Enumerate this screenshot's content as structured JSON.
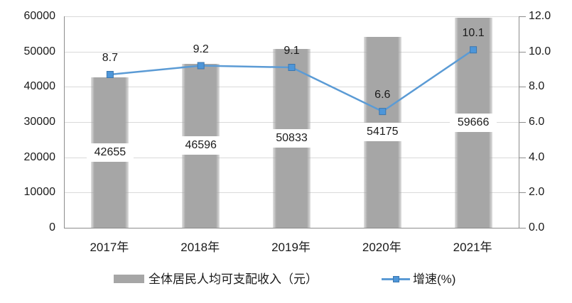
{
  "chart_data": {
    "type": "combo-bar-line",
    "title": "",
    "categories": [
      "2017年",
      "2018年",
      "2019年",
      "2020年",
      "2021年"
    ],
    "series": [
      {
        "name": "全体居民人均可支配收入（元）",
        "type": "bar",
        "axis": "left",
        "values": [
          42655,
          46596,
          50833,
          54175,
          59666
        ],
        "labels": [
          "42655",
          "46596",
          "50833",
          "54175",
          "59666"
        ]
      },
      {
        "name": "增速(%)",
        "type": "line",
        "axis": "right",
        "values": [
          8.7,
          9.2,
          9.1,
          6.6,
          10.1
        ],
        "labels": [
          "8.7",
          "9.2",
          "9.1",
          "6.6",
          "10.1"
        ]
      }
    ],
    "left_axis": {
      "min": 0,
      "max": 60000,
      "step": 10000,
      "ticks": [
        "0",
        "10000",
        "20000",
        "30000",
        "40000",
        "50000",
        "60000"
      ]
    },
    "right_axis": {
      "min": 0,
      "max": 12,
      "step": 2,
      "ticks": [
        "0.0",
        "2.0",
        "4.0",
        "6.0",
        "8.0",
        "10.0",
        "12.0"
      ]
    },
    "grid": true,
    "legend_position": "bottom"
  },
  "colors": {
    "bar": "#a6a6a6",
    "bar_edge_fade": "rgba(166,166,166,0.35)",
    "line": "#5b9bd5",
    "marker_fill": "#4d96d9",
    "marker_stroke": "#3d77ae",
    "grid": "#d9d9d9",
    "axis": "#8c8c8c",
    "text": "#1a1a1a",
    "value_label_bg": "#ffffff"
  }
}
